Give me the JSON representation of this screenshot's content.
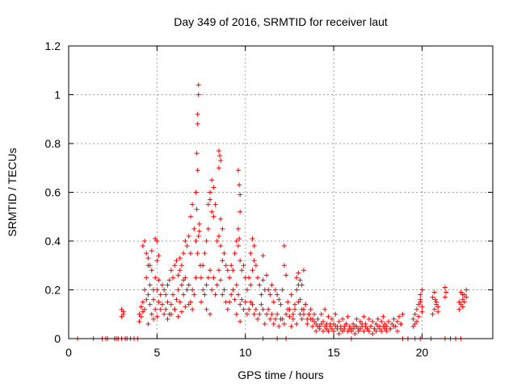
{
  "chart_data": {
    "type": "scatter",
    "title": "Day 349 of 2016, SRMTID for receiver laut",
    "xlabel": "GPS time / hours",
    "ylabel": "SRMTID / TECUs",
    "xlim": [
      0,
      24
    ],
    "ylim": [
      0,
      1.2
    ],
    "xticks": [
      0,
      5,
      10,
      15,
      20
    ],
    "yticks": [
      0,
      0.2,
      0.4,
      0.6,
      0.8,
      1,
      1.2
    ],
    "xtick_labels": [
      "0",
      "5",
      "10",
      "15",
      "20"
    ],
    "ytick_labels": [
      "0",
      "0.2",
      "0.4",
      "0.6",
      "0.8",
      "1",
      "1.2"
    ],
    "grid": true,
    "marker": "plus",
    "series": [
      {
        "name": "SRMTID",
        "color": "#ff0000",
        "x": [
          0.5,
          1.4,
          1.9,
          2.1,
          2.2,
          2.6,
          2.7,
          2.8,
          3.0,
          3.2,
          3.3,
          3.5,
          3.7,
          3.9,
          11.0,
          11.8,
          12.3,
          16.0,
          18.9,
          19.2,
          19.6,
          19.9,
          20.5,
          21.3,
          21.6,
          21.9,
          22.2,
          3.0,
          3.1,
          3.0,
          3.1,
          4.0,
          4.0,
          4.1,
          4.1,
          4.2,
          4.2,
          4.3,
          4.3,
          4.4,
          4.4,
          4.5,
          4.5,
          4.6,
          4.6,
          4.7,
          4.7,
          4.8,
          4.8,
          4.9,
          4.9,
          5.0,
          5.0,
          5.1,
          5.1,
          5.2,
          5.2,
          5.3,
          5.3,
          5.4,
          5.4,
          4.2,
          4.3,
          4.4,
          4.5,
          4.6,
          4.7,
          4.9,
          5.0,
          5.1,
          4.8,
          4.5,
          5.0,
          5.5,
          5.6,
          5.7,
          5.8,
          5.9,
          6.0,
          6.1,
          6.2,
          6.3,
          6.4,
          6.5,
          6.6,
          6.7,
          6.8,
          6.9,
          7.0,
          7.1,
          7.2,
          5.5,
          5.6,
          5.7,
          5.8,
          5.9,
          6.0,
          6.1,
          6.2,
          6.3,
          6.4,
          6.5,
          6.6,
          6.7,
          6.8,
          6.9,
          7.0,
          7.1,
          7.2,
          5.6,
          5.8,
          6.0,
          6.2,
          6.4,
          6.6,
          6.8,
          7.0,
          6.3,
          6.5,
          6.7,
          6.9,
          7.2,
          7.25,
          7.3,
          7.3,
          7.35,
          7.35,
          7.3,
          7.25,
          7.4,
          7.4,
          7.35,
          7.3,
          7.45,
          7.5,
          7.6,
          7.7,
          7.8,
          7.9,
          8.0,
          8.1,
          8.2,
          8.3,
          8.4,
          8.5,
          8.6,
          8.7,
          8.8,
          8.9,
          9.0,
          7.5,
          7.6,
          7.7,
          7.8,
          7.9,
          8.0,
          8.1,
          8.2,
          8.3,
          8.4,
          8.5,
          8.6,
          8.7,
          8.8,
          8.9,
          9.0,
          8.0,
          8.1,
          8.2,
          8.5,
          8.55,
          8.6,
          8.6,
          8.5,
          8.7,
          7.9,
          8.0,
          7.8,
          9.1,
          9.2,
          9.3,
          9.4,
          9.5,
          9.6,
          9.7,
          9.8,
          9.9,
          10.0,
          9.1,
          9.2,
          9.3,
          9.4,
          9.5,
          9.6,
          9.7,
          9.8,
          9.9,
          10.0,
          9.6,
          9.65,
          9.7,
          9.7,
          9.6,
          9.65,
          9.7,
          9.5,
          10.1,
          10.2,
          10.3,
          10.4,
          10.5,
          10.6,
          10.7,
          10.8,
          10.9,
          11.0,
          11.1,
          11.2,
          11.3,
          11.4,
          11.5,
          11.6,
          11.7,
          11.8,
          11.9,
          12.0,
          10.1,
          10.2,
          10.3,
          10.4,
          10.5,
          10.6,
          10.7,
          10.8,
          10.9,
          11.0,
          11.1,
          11.2,
          11.3,
          11.4,
          11.5,
          11.6,
          11.7,
          11.8,
          11.9,
          12.0,
          10.4,
          10.5,
          10.3,
          11.0,
          12.1,
          12.2,
          12.2,
          12.3,
          12.4,
          12.5,
          12.6,
          12.7,
          12.8,
          12.9,
          13.0,
          13.1,
          13.2,
          13.3,
          13.4,
          13.5,
          13.6,
          13.7,
          13.8,
          13.9,
          12.1,
          12.2,
          12.3,
          12.4,
          12.5,
          12.6,
          12.7,
          12.8,
          12.9,
          13.0,
          13.1,
          13.2,
          13.3,
          13.4,
          13.5,
          13.6,
          13.7,
          13.8,
          13.9,
          12.9,
          13.0,
          13.1,
          13.2,
          13.3,
          14.0,
          14.1,
          14.2,
          14.3,
          14.4,
          14.5,
          14.6,
          14.7,
          14.8,
          14.9,
          15.0,
          15.1,
          15.2,
          15.3,
          15.4,
          15.5,
          15.6,
          15.7,
          15.8,
          15.9,
          14.0,
          14.1,
          14.2,
          14.3,
          14.4,
          14.5,
          14.6,
          14.7,
          14.8,
          14.9,
          15.0,
          15.1,
          15.2,
          15.3,
          15.4,
          15.5,
          15.6,
          15.7,
          15.8,
          15.9,
          16.0,
          16.1,
          16.2,
          16.3,
          16.4,
          16.5,
          16.6,
          16.7,
          16.8,
          16.9,
          17.0,
          17.1,
          17.2,
          17.3,
          17.4,
          17.5,
          17.6,
          17.7,
          17.8,
          17.9,
          16.0,
          16.1,
          16.2,
          16.3,
          16.4,
          16.5,
          16.6,
          16.7,
          16.8,
          16.9,
          17.0,
          17.1,
          17.2,
          17.3,
          17.4,
          17.5,
          17.6,
          17.7,
          17.8,
          17.9,
          18.0,
          18.1,
          18.2,
          18.3,
          18.4,
          18.5,
          18.6,
          18.7,
          18.8,
          18.9,
          18.0,
          18.2,
          18.4,
          18.6,
          18.8,
          19.5,
          19.6,
          19.7,
          19.8,
          19.9,
          20.0,
          19.5,
          19.6,
          19.7,
          19.8,
          19.9,
          20.0,
          19.9,
          20.0,
          20.6,
          20.7,
          20.8,
          20.9,
          20.6,
          20.7,
          20.8,
          20.9,
          20.75,
          21.3,
          21.3,
          21.35,
          22.1,
          22.2,
          22.3,
          22.4,
          22.5,
          22.1,
          22.2,
          22.3,
          22.4,
          22.5,
          22.3
        ],
        "y": [
          0.0,
          0.0,
          0.0,
          0.0,
          0.0,
          0.0,
          0.0,
          0.0,
          0.0,
          0.0,
          0.0,
          0.0,
          0.0,
          0.0,
          0.0,
          0.0,
          0.0,
          0.0,
          0.0,
          0.0,
          0.0,
          0.0,
          0.0,
          0.0,
          0.0,
          0.0,
          0.0,
          0.09,
          0.11,
          0.12,
          0.1,
          0.07,
          0.1,
          0.13,
          0.09,
          0.15,
          0.11,
          0.2,
          0.12,
          0.25,
          0.16,
          0.3,
          0.18,
          0.22,
          0.14,
          0.28,
          0.1,
          0.2,
          0.16,
          0.25,
          0.12,
          0.32,
          0.2,
          0.24,
          0.15,
          0.18,
          0.12,
          0.22,
          0.14,
          0.2,
          0.1,
          0.38,
          0.4,
          0.35,
          0.33,
          0.3,
          0.36,
          0.41,
          0.4,
          0.34,
          0.08,
          0.06,
          0.09,
          0.18,
          0.22,
          0.24,
          0.28,
          0.25,
          0.3,
          0.32,
          0.26,
          0.33,
          0.3,
          0.35,
          0.4,
          0.38,
          0.42,
          0.5,
          0.55,
          0.45,
          0.4,
          0.12,
          0.15,
          0.1,
          0.14,
          0.18,
          0.12,
          0.16,
          0.2,
          0.15,
          0.22,
          0.18,
          0.25,
          0.2,
          0.22,
          0.15,
          0.2,
          0.18,
          0.25,
          0.08,
          0.1,
          0.12,
          0.09,
          0.11,
          0.13,
          0.14,
          0.12,
          0.28,
          0.24,
          0.2,
          0.35,
          0.6,
          0.76,
          0.92,
          0.88,
          1.0,
          1.04,
          0.69,
          0.53,
          0.47,
          0.44,
          0.42,
          0.35,
          0.3,
          0.25,
          0.3,
          0.35,
          0.4,
          0.45,
          0.6,
          0.65,
          0.5,
          0.55,
          0.4,
          0.42,
          0.38,
          0.32,
          0.35,
          0.3,
          0.28,
          0.15,
          0.2,
          0.18,
          0.22,
          0.25,
          0.28,
          0.2,
          0.25,
          0.18,
          0.22,
          0.28,
          0.24,
          0.18,
          0.2,
          0.15,
          0.12,
          0.57,
          0.52,
          0.62,
          0.77,
          0.75,
          0.73,
          0.49,
          0.7,
          0.45,
          0.55,
          0.1,
          0.12,
          0.25,
          0.3,
          0.28,
          0.35,
          0.4,
          0.38,
          0.32,
          0.28,
          0.3,
          0.25,
          0.15,
          0.18,
          0.2,
          0.16,
          0.22,
          0.18,
          0.14,
          0.16,
          0.12,
          0.15,
          0.69,
          0.63,
          0.59,
          0.52,
          0.45,
          0.41,
          0.07,
          0.1,
          0.2,
          0.25,
          0.22,
          0.28,
          0.32,
          0.3,
          0.25,
          0.22,
          0.18,
          0.24,
          0.2,
          0.26,
          0.2,
          0.18,
          0.22,
          0.15,
          0.2,
          0.18,
          0.16,
          0.14,
          0.1,
          0.12,
          0.15,
          0.14,
          0.1,
          0.12,
          0.08,
          0.1,
          0.14,
          0.12,
          0.06,
          0.1,
          0.12,
          0.08,
          0.1,
          0.06,
          0.08,
          0.1,
          0.05,
          0.08,
          0.41,
          0.38,
          0.35,
          0.34,
          0.2,
          0.3,
          0.38,
          0.26,
          0.15,
          0.12,
          0.18,
          0.1,
          0.14,
          0.2,
          0.22,
          0.16,
          0.12,
          0.1,
          0.14,
          0.08,
          0.1,
          0.12,
          0.08,
          0.1,
          0.08,
          0.06,
          0.1,
          0.12,
          0.09,
          0.05,
          0.08,
          0.12,
          0.06,
          0.15,
          0.1,
          0.08,
          0.12,
          0.14,
          0.06,
          0.1,
          0.08,
          0.05,
          0.07,
          0.25,
          0.27,
          0.24,
          0.22,
          0.28,
          0.06,
          0.08,
          0.05,
          0.1,
          0.07,
          0.12,
          0.06,
          0.09,
          0.05,
          0.08,
          0.06,
          0.1,
          0.05,
          0.07,
          0.04,
          0.08,
          0.05,
          0.06,
          0.09,
          0.04,
          0.03,
          0.05,
          0.04,
          0.06,
          0.03,
          0.05,
          0.04,
          0.03,
          0.06,
          0.04,
          0.03,
          0.05,
          0.04,
          0.02,
          0.05,
          0.03,
          0.04,
          0.06,
          0.03,
          0.05,
          0.04,
          0.06,
          0.05,
          0.08,
          0.04,
          0.07,
          0.05,
          0.09,
          0.06,
          0.04,
          0.08,
          0.05,
          0.07,
          0.04,
          0.06,
          0.08,
          0.05,
          0.07,
          0.09,
          0.06,
          0.03,
          0.04,
          0.02,
          0.05,
          0.03,
          0.04,
          0.06,
          0.03,
          0.05,
          0.04,
          0.03,
          0.05,
          0.02,
          0.04,
          0.03,
          0.05,
          0.04,
          0.03,
          0.05,
          0.04,
          0.05,
          0.07,
          0.04,
          0.06,
          0.08,
          0.05,
          0.07,
          0.09,
          0.06,
          0.1,
          0.03,
          0.04,
          0.05,
          0.03,
          0.06,
          0.08,
          0.1,
          0.12,
          0.14,
          0.15,
          0.11,
          0.05,
          0.06,
          0.07,
          0.09,
          0.18,
          0.2,
          0.16,
          0.13,
          0.1,
          0.12,
          0.15,
          0.13,
          0.17,
          0.19,
          0.14,
          0.11,
          0.16,
          0.17,
          0.21,
          0.19,
          0.12,
          0.14,
          0.16,
          0.18,
          0.17,
          0.15,
          0.19,
          0.13,
          0.15,
          0.2,
          0.18
        ]
      }
    ]
  }
}
